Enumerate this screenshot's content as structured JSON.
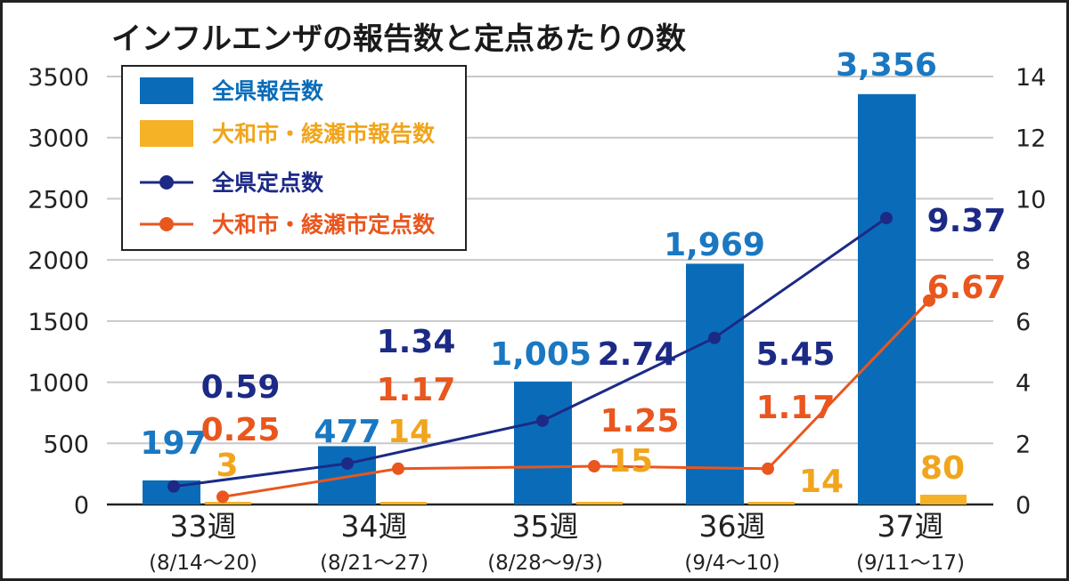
{
  "chart_data": {
    "type": "bar",
    "title": "インフルエンザの報告数と定点あたりの数",
    "categories": [
      "33週",
      "34週",
      "35週",
      "36週",
      "37週"
    ],
    "category_sublabels": [
      "(8/14〜20)",
      "(8/21〜27)",
      "(8/28〜9/3)",
      "(9/4〜10)",
      "(9/11〜17)"
    ],
    "left_axis": {
      "ylim": [
        0,
        3500
      ],
      "ticks": [
        "0",
        "500",
        "1000",
        "1500",
        "2000",
        "2500",
        "3000",
        "3500"
      ]
    },
    "right_axis": {
      "ylim": [
        0,
        14
      ],
      "ticks": [
        "0",
        "2",
        "4",
        "6",
        "8",
        "10",
        "12",
        "14"
      ]
    },
    "grid": true,
    "legend": "top-left",
    "series": [
      {
        "name": "全県報告数",
        "type": "bar",
        "axis": "left",
        "color": "#0a6cb8",
        "values": [
          197,
          477,
          1005,
          1969,
          3356
        ],
        "labels": [
          "197",
          "477",
          "1,005",
          "1,969",
          "3,356"
        ]
      },
      {
        "name": "大和市・綾瀬市報告数",
        "type": "bar",
        "axis": "left",
        "color": "#f5b227",
        "values": [
          3,
          14,
          15,
          14,
          80
        ],
        "labels": [
          "3",
          "14",
          "15",
          "14",
          "80"
        ]
      },
      {
        "name": "全県定点数",
        "type": "line",
        "axis": "right",
        "color": "#1c2a86",
        "values": [
          0.59,
          1.34,
          2.74,
          5.45,
          9.37
        ],
        "labels": [
          "0.59",
          "1.34",
          "2.74",
          "5.45",
          "9.37"
        ]
      },
      {
        "name": "大和市・綾瀬市定点数",
        "type": "line",
        "axis": "right",
        "color": "#e9561e",
        "values": [
          0.25,
          1.17,
          1.25,
          1.17,
          6.67
        ],
        "labels": [
          "0.25",
          "1.17",
          "1.25",
          "1.17",
          "6.67"
        ]
      }
    ]
  }
}
